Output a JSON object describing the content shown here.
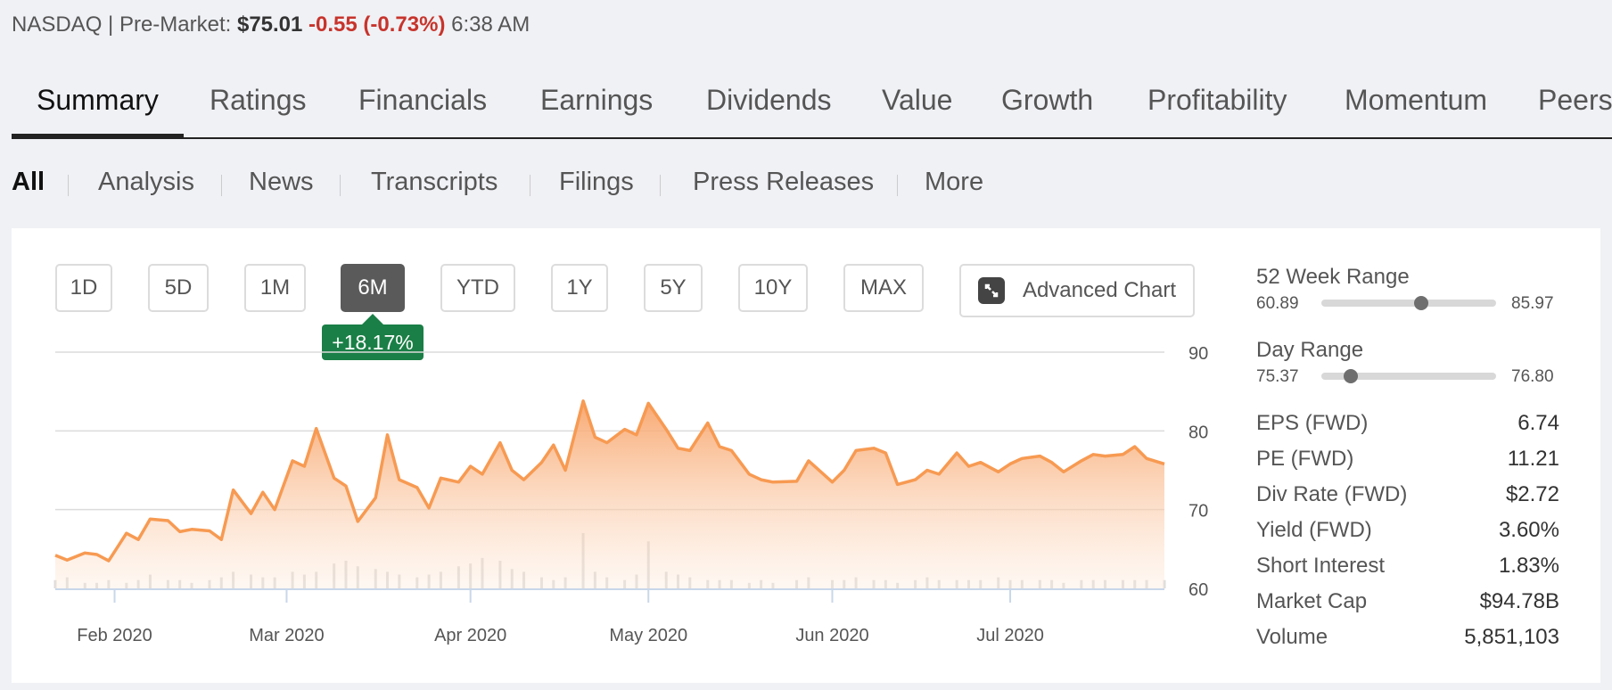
{
  "quote": {
    "exchange": "NASDAQ",
    "divider": "|",
    "session_label": "Pre-Market:",
    "price": "$75.01",
    "change": "-0.55 (-0.73%)",
    "time": "6:38 AM"
  },
  "tabs": [
    "Summary",
    "Ratings",
    "Financials",
    "Earnings",
    "Dividends",
    "Value",
    "Growth",
    "Profitability",
    "Momentum",
    "Peers"
  ],
  "subtabs": [
    "All",
    "Analysis",
    "News",
    "Transcripts",
    "Filings",
    "Press Releases",
    "More"
  ],
  "ranges": [
    "1D",
    "5D",
    "1M",
    "6M",
    "YTD",
    "1Y",
    "5Y",
    "10Y",
    "MAX"
  ],
  "active_range": "6M",
  "advanced_chart_label": "Advanced Chart",
  "performance_badge": "+18.17%",
  "colors": {
    "line": "#f79a52",
    "area_top": "#f8a46a",
    "badge": "#1a7f46",
    "negative": "#c7342c",
    "volume": "#dcdcdc"
  },
  "chart_data": {
    "type": "area",
    "ylim": [
      60,
      90
    ],
    "yticks": [
      "90",
      "80",
      "70",
      "60"
    ],
    "x_tick_labels": [
      "Feb 2020",
      "Mar 2020",
      "Apr 2020",
      "May 2020",
      "Jun 2020",
      "Jul 2020"
    ],
    "x_tick_dates": [
      "2020-02-01",
      "2020-03-01",
      "2020-04-01",
      "2020-05-01",
      "2020-06-01",
      "2020-07-01"
    ],
    "grid": true,
    "x": [
      "2020-01-22",
      "2020-01-24",
      "2020-01-27",
      "2020-01-29",
      "2020-01-31",
      "2020-02-03",
      "2020-02-05",
      "2020-02-07",
      "2020-02-10",
      "2020-02-12",
      "2020-02-14",
      "2020-02-17",
      "2020-02-19",
      "2020-02-21",
      "2020-02-24",
      "2020-02-26",
      "2020-02-28",
      "2020-03-02",
      "2020-03-04",
      "2020-03-06",
      "2020-03-09",
      "2020-03-11",
      "2020-03-13",
      "2020-03-16",
      "2020-03-18",
      "2020-03-20",
      "2020-03-23",
      "2020-03-25",
      "2020-03-27",
      "2020-03-30",
      "2020-04-01",
      "2020-04-03",
      "2020-04-06",
      "2020-04-08",
      "2020-04-10",
      "2020-04-13",
      "2020-04-15",
      "2020-04-17",
      "2020-04-20",
      "2020-04-22",
      "2020-04-24",
      "2020-04-27",
      "2020-04-29",
      "2020-05-01",
      "2020-05-04",
      "2020-05-06",
      "2020-05-08",
      "2020-05-11",
      "2020-05-13",
      "2020-05-15",
      "2020-05-18",
      "2020-05-20",
      "2020-05-22",
      "2020-05-26",
      "2020-05-28",
      "2020-06-01",
      "2020-06-03",
      "2020-06-05",
      "2020-06-08",
      "2020-06-10",
      "2020-06-12",
      "2020-06-15",
      "2020-06-17",
      "2020-06-19",
      "2020-06-22",
      "2020-06-24",
      "2020-06-26",
      "2020-06-29",
      "2020-07-01",
      "2020-07-03",
      "2020-07-06",
      "2020-07-08",
      "2020-07-10",
      "2020-07-13",
      "2020-07-15",
      "2020-07-17",
      "2020-07-20",
      "2020-07-22",
      "2020-07-24",
      "2020-07-27"
    ],
    "series": [
      {
        "values": [
          64.2,
          63.6,
          64.5,
          64.3,
          63.5,
          67.0,
          66.2,
          68.8,
          68.6,
          67.2,
          67.5,
          67.3,
          66.2,
          72.5,
          69.5,
          72.2,
          70.0,
          76.2,
          75.5,
          80.3,
          74.0,
          73.0,
          68.5,
          71.5,
          79.5,
          73.8,
          72.8,
          70.2,
          74.0,
          73.5,
          75.5,
          74.5,
          78.5,
          75.0,
          73.8,
          76.0,
          78.2,
          75.0,
          83.8,
          79.2,
          78.5,
          80.2,
          79.5,
          83.5,
          80.2,
          77.8,
          77.5,
          81.0,
          78.0,
          77.5,
          74.5,
          73.8,
          73.5,
          73.6,
          76.2,
          73.5,
          75.0,
          77.5,
          77.8,
          77.2,
          73.2,
          73.8,
          75.0,
          74.5,
          77.2,
          75.5,
          76.0,
          74.8,
          75.8,
          76.5,
          76.8,
          76.0,
          74.8,
          76.2,
          77.0,
          76.8,
          77.0,
          78.0,
          76.5,
          75.8
        ]
      }
    ],
    "volume_note": "relative daily volume bars shown at chart bottom (no volume axis printed)",
    "volume": [
      3,
      4,
      2,
      2,
      3,
      2,
      3,
      5,
      3,
      3,
      2,
      3,
      4,
      6,
      5,
      4,
      4,
      6,
      5,
      6,
      9,
      10,
      8,
      7,
      6,
      5,
      4,
      5,
      6,
      8,
      9,
      11,
      10,
      7,
      6,
      4,
      3,
      4,
      20,
      6,
      4,
      3,
      5,
      17,
      6,
      5,
      4,
      3,
      3,
      3,
      2,
      3,
      2,
      3,
      4,
      3,
      3,
      4,
      3,
      3,
      2,
      3,
      4,
      3,
      3,
      3,
      3,
      4,
      3,
      3,
      3,
      3,
      2,
      3,
      3,
      3,
      3,
      3,
      3,
      3
    ]
  },
  "week52": {
    "label": "52 Week Range",
    "low": "60.89",
    "high": "85.97",
    "position": 0.57
  },
  "day_range": {
    "label": "Day Range",
    "low": "75.37",
    "high": "76.80",
    "position": 0.17
  },
  "stats": [
    {
      "label": "EPS (FWD)",
      "value": "6.74"
    },
    {
      "label": "PE (FWD)",
      "value": "11.21"
    },
    {
      "label": "Div Rate (FWD)",
      "value": "$2.72"
    },
    {
      "label": "Yield (FWD)",
      "value": "3.60%"
    },
    {
      "label": "Short Interest",
      "value": "1.83%"
    },
    {
      "label": "Market Cap",
      "value": "$94.78B"
    },
    {
      "label": "Volume",
      "value": "5,851,103"
    }
  ]
}
